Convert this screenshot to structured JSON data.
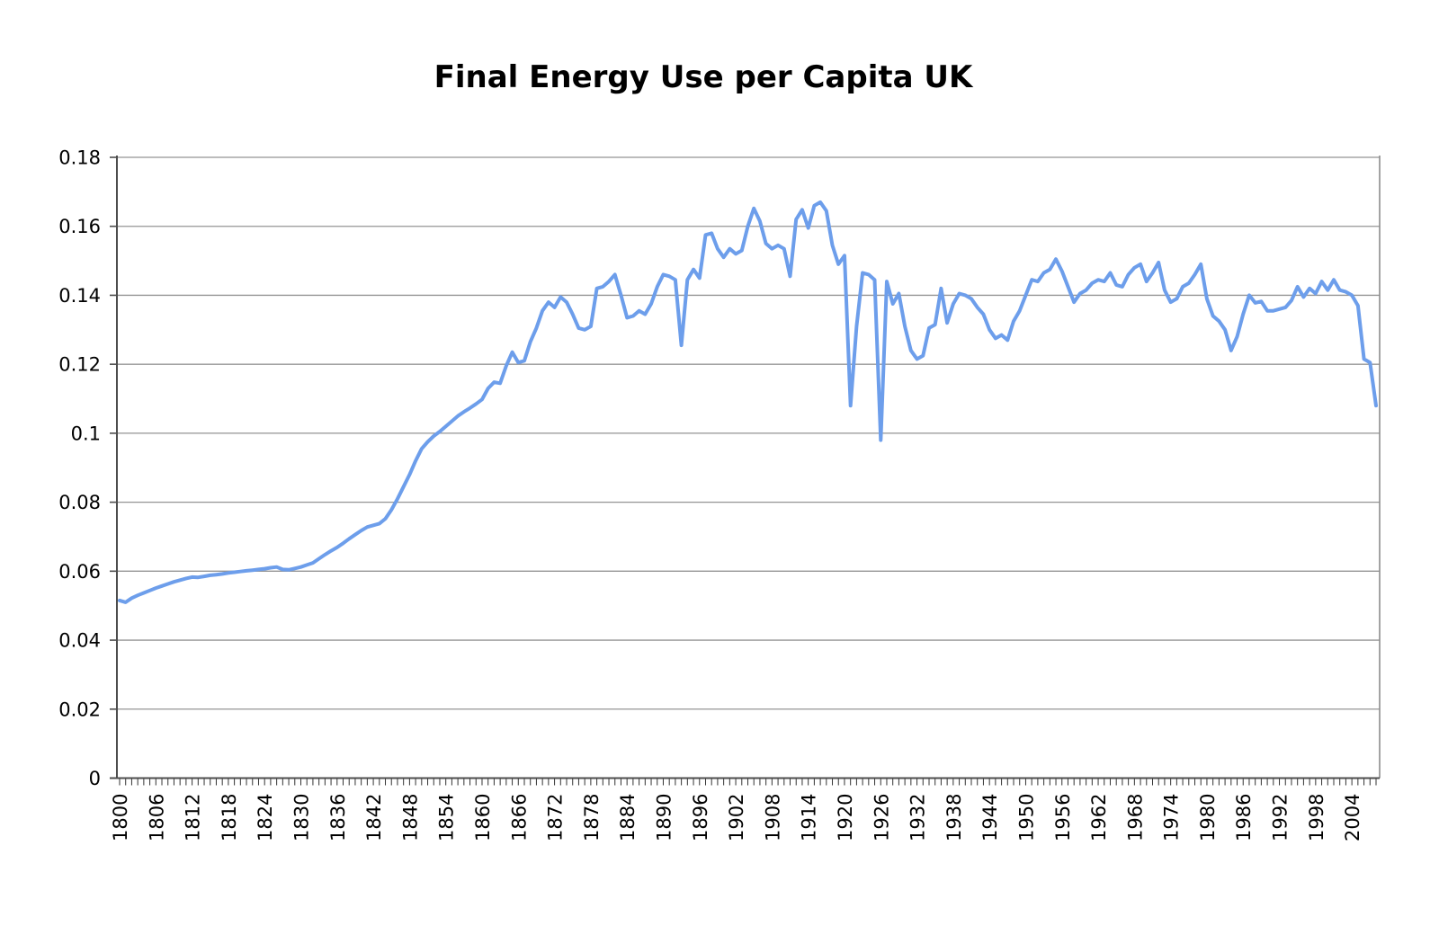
{
  "chart_data": {
    "type": "line",
    "title": "Final Energy Use per Capita UK",
    "xlabel": "",
    "ylabel": "",
    "ylim": [
      0,
      0.18
    ],
    "y_tick_step": 0.02,
    "y_tick_labels": [
      "0",
      "0.02",
      "0.04",
      "0.06",
      "0.08",
      "0.1",
      "0.12",
      "0.14",
      "0.16",
      "0.18"
    ],
    "x_first_year": 1800,
    "x_last_year": 2008,
    "x_tick_interval_years": 1,
    "x_label_interval_years": 6,
    "x_label_years": [
      1800,
      1806,
      1812,
      1818,
      1824,
      1830,
      1836,
      1842,
      1848,
      1854,
      1860,
      1866,
      1872,
      1878,
      1884,
      1890,
      1896,
      1902,
      1908,
      1914,
      1920,
      1926,
      1932,
      1938,
      1944,
      1950,
      1956,
      1962,
      1968,
      1974,
      1980,
      1986,
      1992,
      1998,
      2004
    ],
    "grid": "horizontal",
    "legend": "none",
    "series": [
      {
        "name": "Final energy use per capita (UK)",
        "values": [
          0.0515,
          0.051,
          0.0522,
          0.053,
          0.0537,
          0.0544,
          0.0551,
          0.0557,
          0.0563,
          0.0569,
          0.0574,
          0.0579,
          0.0583,
          0.0582,
          0.0585,
          0.0588,
          0.059,
          0.0592,
          0.0595,
          0.0597,
          0.0599,
          0.0601,
          0.0603,
          0.0605,
          0.0607,
          0.061,
          0.0612,
          0.0605,
          0.0604,
          0.0608,
          0.0612,
          0.0618,
          0.0624,
          0.0636,
          0.0648,
          0.0659,
          0.0669,
          0.0681,
          0.0694,
          0.0706,
          0.0718,
          0.0728,
          0.0733,
          0.0738,
          0.0752,
          0.0778,
          0.081,
          0.0845,
          0.088,
          0.092,
          0.0955,
          0.0975,
          0.0992,
          0.1005,
          0.102,
          0.1035,
          0.105,
          0.1062,
          0.1073,
          0.1085,
          0.1098,
          0.113,
          0.1148,
          0.1145,
          0.1195,
          0.1235,
          0.1205,
          0.121,
          0.1265,
          0.1305,
          0.1355,
          0.138,
          0.1365,
          0.1395,
          0.138,
          0.1345,
          0.1305,
          0.13,
          0.131,
          0.142,
          0.1425,
          0.144,
          0.146,
          0.14,
          0.1335,
          0.134,
          0.1355,
          0.1345,
          0.1375,
          0.1425,
          0.146,
          0.1455,
          0.1445,
          0.1255,
          0.1445,
          0.1475,
          0.145,
          0.1575,
          0.158,
          0.1535,
          0.151,
          0.1535,
          0.152,
          0.153,
          0.16,
          0.1652,
          0.1615,
          0.155,
          0.1535,
          0.1545,
          0.1535,
          0.1455,
          0.162,
          0.1648,
          0.1595,
          0.166,
          0.167,
          0.1645,
          0.1545,
          0.149,
          0.1515,
          0.108,
          0.131,
          0.1465,
          0.146,
          0.1445,
          0.098,
          0.144,
          0.1375,
          0.1405,
          0.131,
          0.124,
          0.1215,
          0.1225,
          0.1305,
          0.1315,
          0.142,
          0.132,
          0.1375,
          0.1405,
          0.14,
          0.139,
          0.1365,
          0.1345,
          0.13,
          0.1275,
          0.1285,
          0.127,
          0.1325,
          0.1355,
          0.14,
          0.1445,
          0.144,
          0.1465,
          0.1475,
          0.1505,
          0.147,
          0.1425,
          0.138,
          0.1405,
          0.1415,
          0.1435,
          0.1445,
          0.144,
          0.1465,
          0.143,
          0.1425,
          0.146,
          0.148,
          0.149,
          0.144,
          0.1465,
          0.1495,
          0.1415,
          0.138,
          0.139,
          0.1425,
          0.1435,
          0.146,
          0.149,
          0.139,
          0.134,
          0.1325,
          0.13,
          0.124,
          0.128,
          0.1345,
          0.14,
          0.1378,
          0.1382,
          0.1355,
          0.1355,
          0.136,
          0.1365,
          0.1385,
          0.1425,
          0.1395,
          0.142,
          0.1405,
          0.144,
          0.1415,
          0.1445,
          0.1415,
          0.141,
          0.14,
          0.137,
          0.1215,
          0.1205,
          0.108
        ]
      }
    ]
  },
  "style": {
    "line_color": "#6d9eeb",
    "grid_color": "#949494",
    "axis_color": "#4d4d4d",
    "plot_border_color": "#8c8c8c",
    "tick_color": "#333333",
    "text_color": "#000000",
    "background": "#ffffff"
  }
}
